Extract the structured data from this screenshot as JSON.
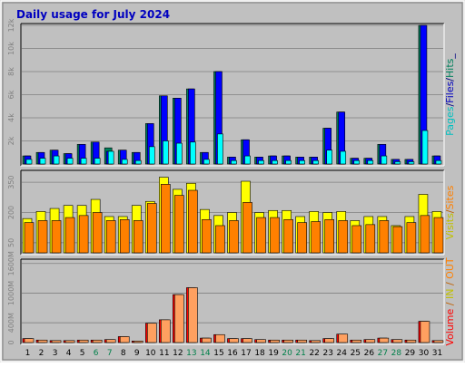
{
  "chart_data": {
    "type": "bar",
    "title": "Daily usage for July 2024",
    "categories": [
      "1",
      "2",
      "3",
      "4",
      "5",
      "6",
      "7",
      "8",
      "9",
      "10",
      "11",
      "12",
      "13",
      "14",
      "15",
      "16",
      "17",
      "18",
      "19",
      "20",
      "21",
      "22",
      "23",
      "24",
      "25",
      "26",
      "27",
      "28",
      "29",
      "30",
      "31"
    ],
    "weekend_days": [
      "6",
      "7",
      "13",
      "14",
      "20",
      "21",
      "27",
      "28"
    ],
    "colors": {
      "background": "#c0c0c0",
      "frame": "#ffffff",
      "title": "#0000c0",
      "weekday_label": "#000000",
      "weekend_label": "#00804a",
      "pages": "#00805c",
      "files": "#0000ff",
      "hits": "#00ffff",
      "visits": "#ffff00",
      "sites": "#ff8000",
      "volume": "#e06000",
      "volume_in": "#ff0000",
      "volume_out": "#ffa060",
      "axis_label": "#808080"
    },
    "panels": [
      {
        "id": "hits",
        "ylabel_parts": [
          {
            "text": "Pages",
            "color": "#00c0c0"
          },
          {
            "text": "/",
            "color": "#000080"
          },
          {
            "text": "Files",
            "color": "#0000c0"
          },
          {
            "text": "/",
            "color": "#000080"
          },
          {
            "text": "Hits",
            "color": "#00805c"
          },
          {
            "text": "_",
            "color": "#000080"
          }
        ],
        "ylim": [
          0,
          12000
        ],
        "yticks": [
          {
            "value": 2000,
            "label": "2k"
          },
          {
            "value": 4000,
            "label": "4k"
          },
          {
            "value": 6000,
            "label": "6k"
          },
          {
            "value": 8000,
            "label": "8k"
          },
          {
            "value": 10000,
            "label": "10k"
          },
          {
            "value": 12000,
            "label": "12k"
          }
        ],
        "series": [
          {
            "name": "Hits",
            "color": "#00805c",
            "values": [
              700,
              1000,
              1200,
              900,
              1700,
              1900,
              1400,
              1200,
              1000,
              3500,
              5900,
              5700,
              6500,
              1000,
              8000,
              600,
              2100,
              600,
              700,
              700,
              600,
              600,
              3100,
              4500,
              500,
              500,
              1700,
              400,
              400,
              12000,
              700
            ]
          },
          {
            "name": "Files",
            "color": "#0000ff",
            "values": [
              700,
              1000,
              1200,
              900,
              1700,
              1900,
              1100,
              1200,
              1000,
              3500,
              5900,
              5700,
              6500,
              1000,
              8000,
              600,
              2100,
              600,
              700,
              700,
              600,
              600,
              3100,
              4500,
              500,
              500,
              1700,
              400,
              400,
              12000,
              700
            ]
          },
          {
            "name": "Pages",
            "color": "#00ffff",
            "values": [
              400,
              500,
              700,
              500,
              500,
              500,
              1100,
              400,
              300,
              1500,
              2000,
              1800,
              1900,
              400,
              2600,
              300,
              700,
              300,
              300,
              300,
              300,
              300,
              1200,
              1100,
              300,
              300,
              700,
              200,
              200,
              2900,
              300
            ]
          }
        ]
      },
      {
        "id": "visits",
        "ylabel_parts": [
          {
            "text": "Visits",
            "color": "#c0c000"
          },
          {
            "text": "/",
            "color": "#c06000"
          },
          {
            "text": "Sites",
            "color": "#ff8000"
          }
        ],
        "ylim": [
          0,
          400
        ],
        "yticks": [
          {
            "value": 50,
            "label": "50"
          },
          {
            "value": 200,
            "label": "200"
          },
          {
            "value": 350,
            "label": "350"
          }
        ],
        "series": [
          {
            "name": "Visits",
            "color": "#ffff00",
            "values": [
              170,
              205,
              220,
              235,
              235,
              265,
              180,
              180,
              235,
              255,
              375,
              315,
              345,
              215,
              185,
              200,
              355,
              200,
              210,
              210,
              180,
              205,
              200,
              205,
              160,
              180,
              180,
              135,
              180,
              290,
              205
            ]
          },
          {
            "name": "Sites",
            "color": "#ff8000",
            "values": [
              150,
              160,
              160,
              175,
              185,
              200,
              160,
              165,
              160,
              245,
              340,
              285,
              310,
              165,
              135,
              160,
              250,
              175,
              175,
              165,
              150,
              155,
              165,
              160,
              135,
              140,
              160,
              130,
              150,
              185,
              175
            ]
          }
        ]
      },
      {
        "id": "volume",
        "ylabel_parts": [
          {
            "text": "Volume",
            "color": "#ff0000"
          },
          {
            "text": " / ",
            "color": "#c06000"
          },
          {
            "text": "IN",
            "color": "#c0c000"
          },
          {
            "text": " / ",
            "color": "#c06000"
          },
          {
            "text": "OUT",
            "color": "#ff8000"
          }
        ],
        "ylim": [
          0,
          1650
        ],
        "yticks": [
          {
            "value": 0,
            "label": "0"
          },
          {
            "value": 400,
            "label": "400M"
          },
          {
            "value": 1000,
            "label": "1000M"
          },
          {
            "value": 1600,
            "label": "1600M"
          }
        ],
        "series": [
          {
            "name": "Volume",
            "color": "#ff0000",
            "values": [
              80,
              50,
              40,
              40,
              50,
              50,
              60,
              120,
              30,
              390,
              460,
              970,
              1110,
              90,
              160,
              80,
              80,
              60,
              50,
              50,
              50,
              40,
              80,
              170,
              50,
              60,
              90,
              60,
              50,
              430,
              40
            ]
          },
          {
            "name": "OUT",
            "color": "#ffa060",
            "values": [
              80,
              50,
              40,
              40,
              50,
              50,
              60,
              120,
              30,
              390,
              460,
              970,
              1110,
              90,
              160,
              80,
              80,
              60,
              50,
              50,
              50,
              40,
              80,
              170,
              50,
              60,
              90,
              60,
              50,
              430,
              40
            ]
          }
        ]
      }
    ]
  }
}
